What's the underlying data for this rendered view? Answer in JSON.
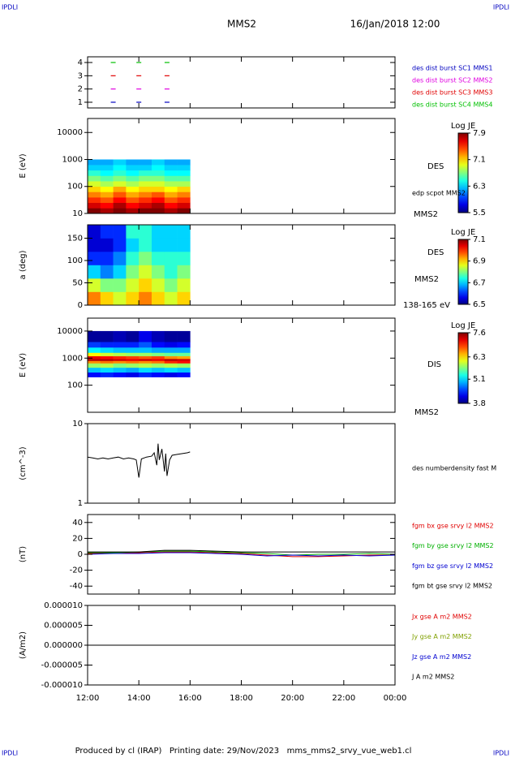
{
  "corner_labels": [
    "IPDLI",
    "IPDLI",
    "IPDLI",
    "IPDLI"
  ],
  "header": {
    "title": "MMS2",
    "date": "16/Jan/2018 12:00"
  },
  "footer": "Produced by cl (IRAP)   Printing date: 29/Nov/2023   mms_mms2_srvy_vue_web1.cl",
  "time_axis": {
    "xlim": [
      12,
      24
    ],
    "xticks": [
      {
        "value": 12,
        "label": "12:00"
      },
      {
        "value": 14,
        "label": "14:00"
      },
      {
        "value": 16,
        "label": "16:00"
      },
      {
        "value": 18,
        "label": "18:00"
      },
      {
        "value": 20,
        "label": "20:00"
      },
      {
        "value": 22,
        "label": "22:00"
      },
      {
        "value": 24,
        "label": "00:00"
      }
    ]
  },
  "chart_data": [
    {
      "type": "scatter",
      "ylim": [
        0.57,
        4.43
      ],
      "yticks": [
        1,
        2,
        3,
        4
      ],
      "series": [
        {
          "name": "des dist burst SC1 MMS1",
          "color": "#0000c0",
          "x": [
            13.0,
            14.0,
            15.1
          ],
          "values": [
            1,
            1,
            1
          ]
        },
        {
          "name": "des dist burst SC2 MMS2",
          "color": "#e000e0",
          "x": [
            13.0,
            14.0,
            15.1
          ],
          "values": [
            2,
            2,
            2
          ]
        },
        {
          "name": "des dist burst SC3 MMS3",
          "color": "#e00000",
          "x": [
            13.0,
            14.0,
            15.1
          ],
          "values": [
            3,
            3,
            3
          ]
        },
        {
          "name": "des dist burst SC4 MMS4",
          "color": "#00c000",
          "x": [
            13.0,
            14.0,
            15.1
          ],
          "values": [
            4,
            4,
            4
          ]
        }
      ]
    },
    {
      "type": "heatmap",
      "ylabel": "E (eV)",
      "log_scale": true,
      "ylim": [
        10,
        33000
      ],
      "yticks": [
        10,
        100,
        1000,
        10000
      ],
      "colorbar_title": "Log JE",
      "zlim": [
        5.5,
        7.9
      ],
      "zticks": [
        5.5,
        6.3,
        7.1,
        7.9
      ],
      "annotations": [
        "DES",
        "edp scpot MMS2",
        "MMS2"
      ],
      "x_edges": [
        12,
        12.5,
        13,
        13.5,
        14,
        14.5,
        15,
        15.5,
        16
      ],
      "y_edges": [
        10,
        15.8,
        25.1,
        39.8,
        63.1,
        100,
        158,
        251,
        398,
        631,
        1000
      ],
      "z": [
        [
          7.9,
          7.8,
          7.9,
          7.8,
          7.9,
          7.9,
          7.8,
          7.9
        ],
        [
          7.7,
          7.6,
          7.8,
          7.6,
          7.7,
          7.8,
          7.6,
          7.7
        ],
        [
          7.5,
          7.4,
          7.6,
          7.4,
          7.5,
          7.6,
          7.4,
          7.5
        ],
        [
          7.3,
          7.2,
          7.4,
          7.2,
          7.3,
          7.4,
          7.2,
          7.3
        ],
        [
          7.1,
          7.0,
          7.2,
          7.0,
          7.1,
          7.1,
          7.0,
          7.1
        ],
        [
          6.9,
          6.8,
          6.9,
          6.8,
          6.9,
          6.9,
          6.8,
          6.8
        ],
        [
          6.7,
          6.6,
          6.7,
          6.6,
          6.7,
          6.7,
          6.6,
          6.6
        ],
        [
          6.5,
          6.4,
          6.5,
          6.4,
          6.5,
          6.5,
          6.4,
          6.4
        ],
        [
          6.3,
          6.3,
          6.4,
          6.3,
          6.3,
          6.4,
          6.3,
          6.3
        ],
        [
          6.2,
          6.2,
          6.3,
          6.2,
          6.2,
          6.3,
          6.2,
          6.2
        ]
      ]
    },
    {
      "type": "heatmap",
      "ylabel": "a (deg)",
      "ylim": [
        0,
        180
      ],
      "yticks": [
        0,
        50,
        100,
        150
      ],
      "colorbar_title": "Log JE",
      "zlim": [
        6.5,
        7.1
      ],
      "zticks": [
        6.5,
        6.7,
        6.9,
        7.1
      ],
      "annotations": [
        "DES",
        "MMS2",
        "138-165 eV"
      ],
      "x_edges": [
        12,
        12.5,
        13,
        13.5,
        14,
        14.5,
        15,
        15.5,
        16
      ],
      "y_edges": [
        0,
        30,
        60,
        90,
        120,
        150,
        180
      ],
      "z": [
        [
          6.95,
          6.9,
          6.85,
          6.9,
          6.95,
          6.9,
          6.85,
          6.9
        ],
        [
          6.85,
          6.8,
          6.8,
          6.85,
          6.9,
          6.85,
          6.8,
          6.85
        ],
        [
          6.7,
          6.65,
          6.7,
          6.8,
          6.85,
          6.8,
          6.75,
          6.8
        ],
        [
          6.6,
          6.6,
          6.65,
          6.75,
          6.8,
          6.75,
          6.75,
          6.75
        ],
        [
          6.55,
          6.55,
          6.6,
          6.7,
          6.75,
          6.7,
          6.7,
          6.7
        ],
        [
          6.55,
          6.6,
          6.6,
          6.75,
          6.75,
          6.7,
          6.7,
          6.7
        ]
      ]
    },
    {
      "type": "heatmap",
      "ylabel": "E (eV)",
      "log_scale": true,
      "ylim": [
        10,
        30000
      ],
      "yticks": [
        100,
        1000,
        10000
      ],
      "colorbar_title": "Log JE",
      "zlim": [
        3.8,
        7.6
      ],
      "zticks": [
        3.8,
        5.1,
        6.3,
        7.6
      ],
      "annotations": [
        "DIS",
        "MMS2"
      ],
      "x_edges": [
        12,
        12.5,
        13,
        13.5,
        14,
        14.5,
        15,
        15.5,
        16
      ],
      "y_edges": [
        200,
        300,
        450,
        650,
        800,
        950,
        1200,
        1600,
        2500,
        4000,
        10000
      ],
      "z": [
        [
          4.3,
          4.4,
          4.3,
          4.2,
          4.4,
          4.3,
          4.2,
          4.3
        ],
        [
          5.0,
          5.1,
          5.0,
          4.9,
          5.1,
          5.0,
          5.1,
          5.0
        ],
        [
          5.8,
          5.9,
          5.7,
          5.8,
          5.9,
          5.8,
          5.9,
          5.8
        ],
        [
          6.6,
          6.7,
          6.6,
          6.7,
          6.6,
          6.7,
          7.0,
          7.1
        ],
        [
          7.4,
          7.4,
          7.3,
          7.2,
          7.3,
          7.2,
          7.4,
          7.3
        ],
        [
          7.2,
          7.1,
          7.0,
          6.9,
          6.8,
          6.9,
          6.6,
          6.5
        ],
        [
          6.2,
          6.0,
          5.9,
          5.8,
          5.8,
          5.7,
          5.6,
          5.6
        ],
        [
          5.2,
          5.1,
          5.0,
          5.0,
          5.0,
          4.9,
          4.9,
          4.9
        ],
        [
          4.5,
          4.4,
          4.4,
          4.4,
          4.6,
          4.3,
          4.2,
          4.3
        ],
        [
          3.9,
          3.9,
          4.0,
          3.9,
          4.2,
          4.0,
          3.9,
          3.9
        ]
      ]
    },
    {
      "type": "line",
      "ylabel": "(cm^-3)",
      "log_scale": true,
      "ylim": [
        1,
        10
      ],
      "yticks": [
        1,
        10
      ],
      "series": [
        {
          "name": "des numberdensity fast M",
          "color": "#000000",
          "x": [
            12.0,
            12.2,
            12.4,
            12.6,
            12.8,
            13.0,
            13.2,
            13.4,
            13.6,
            13.8,
            13.9,
            14.0,
            14.1,
            14.3,
            14.5,
            14.6,
            14.7,
            14.75,
            14.8,
            14.9,
            15.0,
            15.05,
            15.1,
            15.2,
            15.3,
            15.5,
            15.7,
            15.9,
            16.0
          ],
          "values": [
            3.8,
            3.7,
            3.6,
            3.7,
            3.6,
            3.7,
            3.8,
            3.6,
            3.7,
            3.6,
            3.5,
            2.1,
            3.6,
            3.8,
            3.9,
            4.3,
            3.0,
            5.6,
            3.5,
            4.8,
            2.5,
            4.2,
            2.2,
            3.5,
            4.0,
            4.1,
            4.2,
            4.3,
            4.4
          ]
        }
      ]
    },
    {
      "type": "line",
      "ylabel": "(nT)",
      "ylim": [
        -50,
        50
      ],
      "yticks": [
        -40,
        -20,
        0,
        20,
        40
      ],
      "series": [
        {
          "name": "fgm bx gse srvy l2 MMS2",
          "color": "#e00000",
          "x": [
            12,
            13,
            14,
            15,
            16,
            17,
            18,
            19,
            20,
            21,
            22,
            23,
            24
          ],
          "values": [
            1,
            1,
            2,
            3,
            3,
            2,
            1,
            -1,
            -3,
            -3,
            -2,
            -1,
            -1
          ]
        },
        {
          "name": "fgm by gse srvy l2 MMS2",
          "color": "#00b000",
          "x": [
            12,
            13,
            14,
            15,
            16,
            17,
            18,
            19,
            20,
            21,
            22,
            23,
            24
          ],
          "values": [
            2,
            2,
            3,
            4,
            4,
            3,
            2,
            1,
            -1,
            0,
            0,
            1,
            0
          ]
        },
        {
          "name": "fgm bz gse srvy l2 MMS2",
          "color": "#0000d0",
          "x": [
            12,
            13,
            14,
            15,
            16,
            17,
            18,
            19,
            20,
            21,
            22,
            23,
            24
          ],
          "values": [
            0,
            1,
            1,
            2,
            2,
            1,
            0,
            -2,
            -1,
            -2,
            -1,
            -2,
            -1
          ]
        },
        {
          "name": "fgm bt gse srvy l2 MMS2",
          "color": "#000000",
          "x": [
            12,
            13,
            14,
            15,
            16,
            17,
            18,
            19,
            20,
            21,
            22,
            23,
            24
          ],
          "values": [
            3,
            3,
            3,
            5,
            5,
            4,
            3,
            3,
            3,
            3,
            3,
            3,
            3
          ]
        }
      ]
    },
    {
      "type": "line",
      "ylabel": "(A/m2)",
      "ylim": [
        -1e-05,
        1e-05
      ],
      "yticks": [
        {
          "value": -1e-05,
          "label": "-0.000010"
        },
        {
          "value": -5e-06,
          "label": "-0.000005"
        },
        {
          "value": 0,
          "label": "0.000000"
        },
        {
          "value": 5e-06,
          "label": "0.000005"
        },
        {
          "value": 1e-05,
          "label": "0.000010"
        }
      ],
      "series": [
        {
          "name": "Jx gse A m2 MMS2",
          "color": "#e00000",
          "x": [
            12,
            24
          ],
          "values": [
            0,
            0
          ]
        },
        {
          "name": "Jy gse A m2 MMS2",
          "color": "#80a000",
          "x": [
            12,
            24
          ],
          "values": [
            0,
            0
          ]
        },
        {
          "name": "Jz gse A m2 MMS2",
          "color": "#0000d0",
          "x": [
            12,
            24
          ],
          "values": [
            0,
            0
          ]
        },
        {
          "name": "J A m2 MMS2",
          "color": "#000000",
          "x": [
            12,
            24
          ],
          "values": [
            0,
            0
          ]
        }
      ]
    }
  ]
}
